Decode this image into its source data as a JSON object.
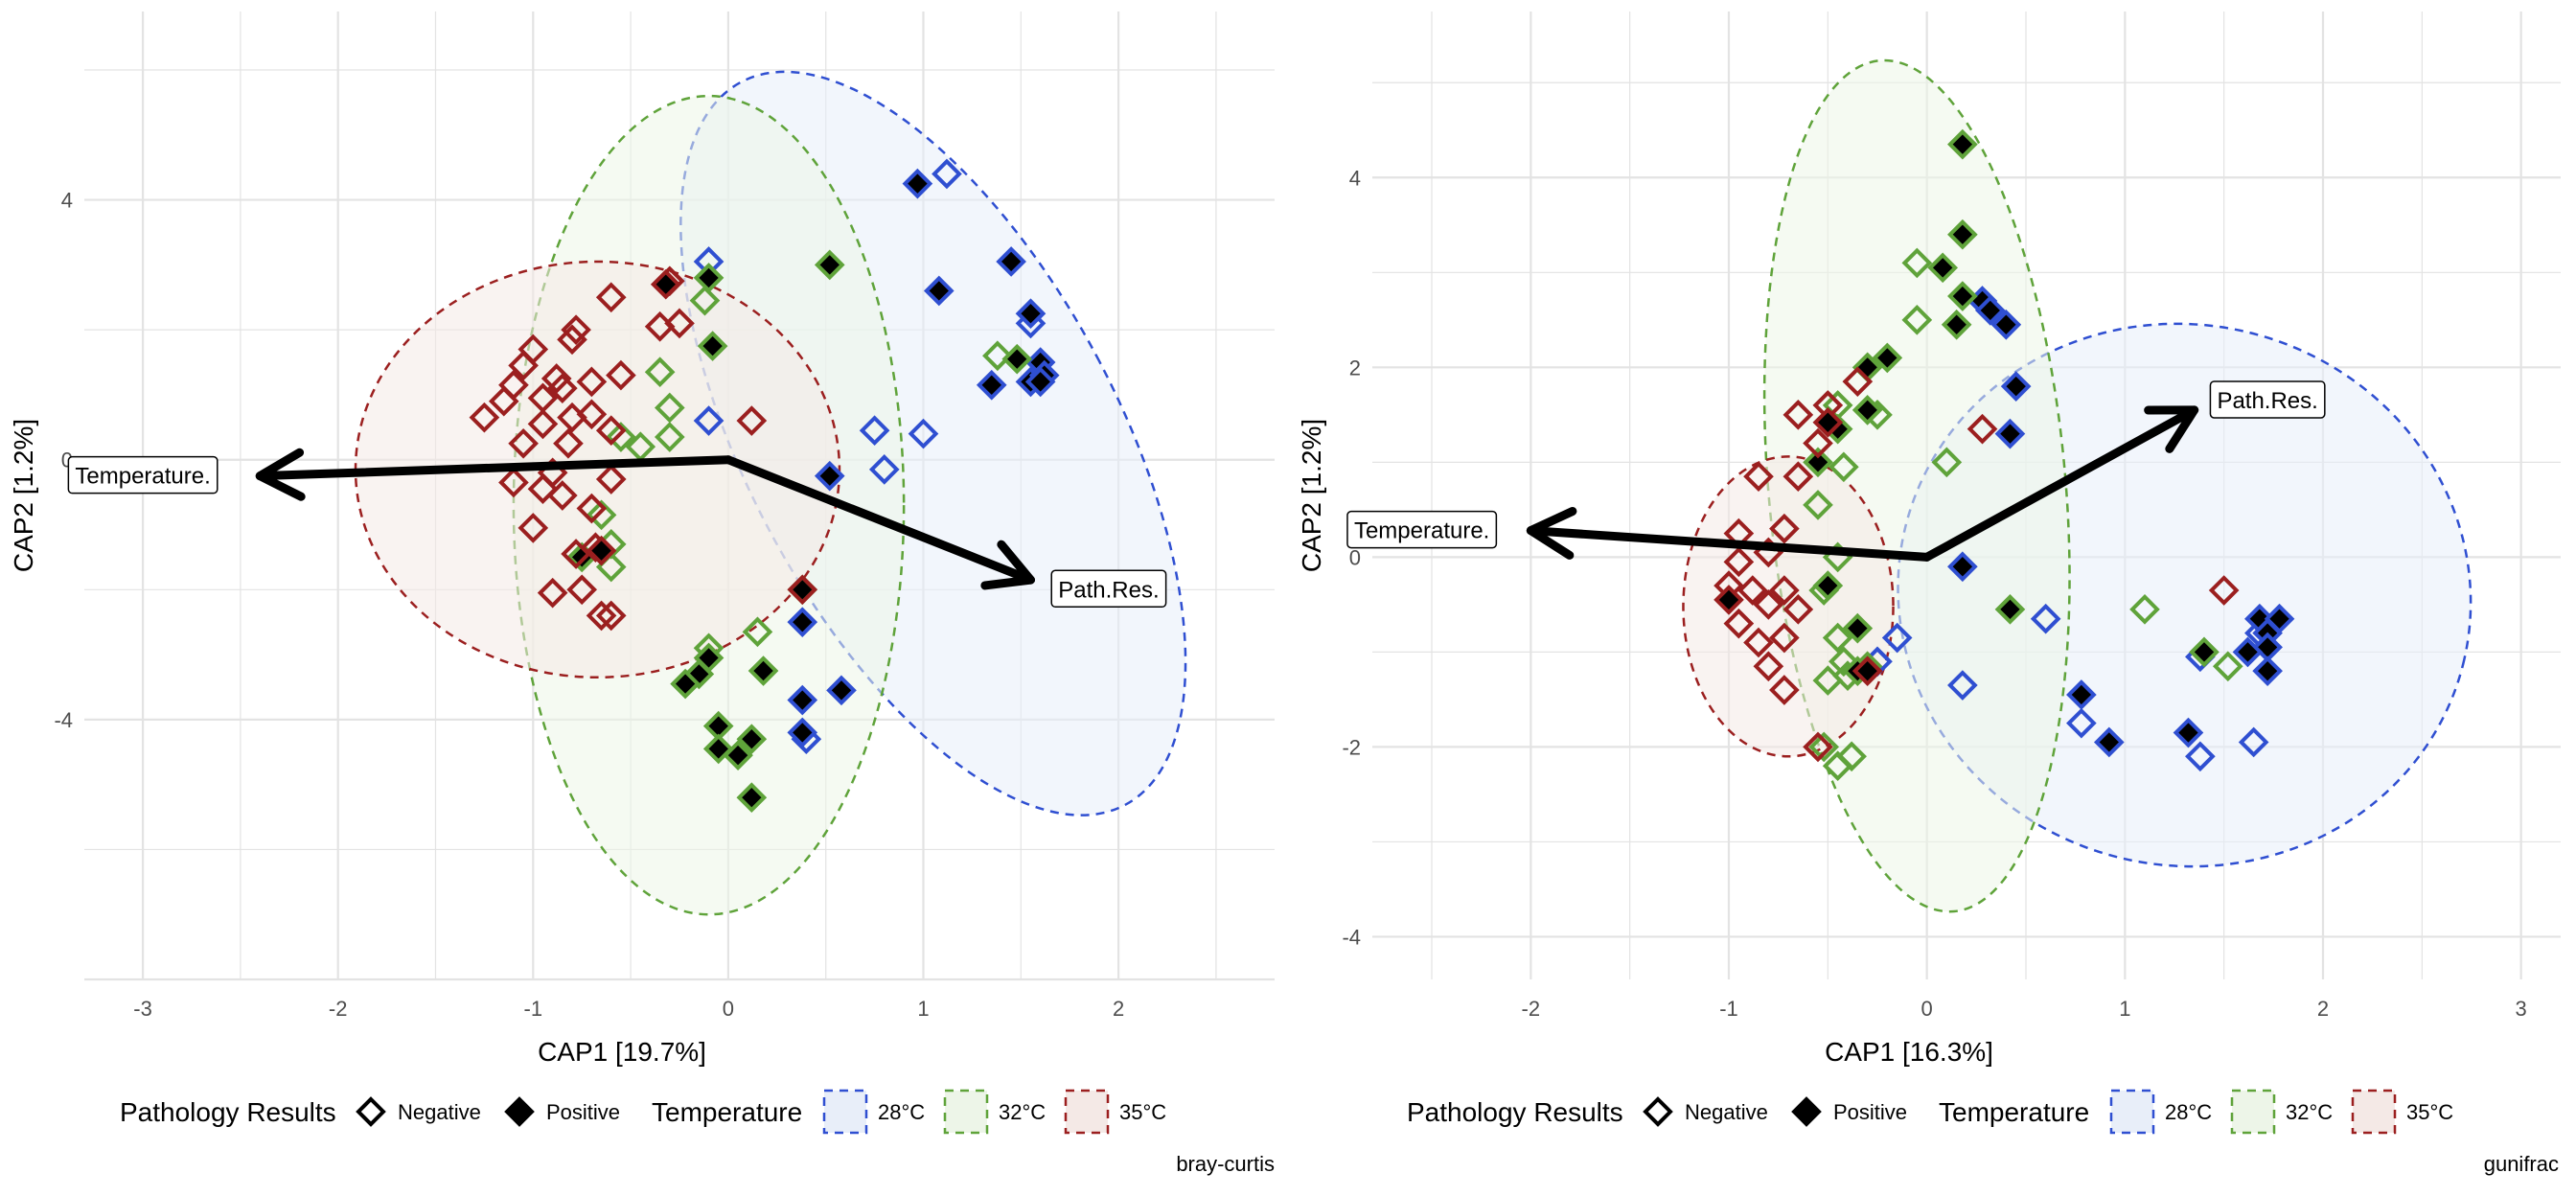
{
  "chart_data": [
    {
      "type": "scatter",
      "caption": "bray-curtis",
      "xlabel": "CAP1 [19.7%]",
      "ylabel": "CAP2 [1.2%]",
      "xlim": [
        -3.3,
        2.8
      ],
      "ylim": [
        -8,
        6.9
      ],
      "xticks": [
        -3,
        -2,
        -1,
        0,
        1,
        2
      ],
      "yticks": [
        -4,
        0,
        4
      ],
      "grid": true,
      "ellipses": [
        {
          "group": "28°C",
          "cx": 1.05,
          "cy": 0.25,
          "rx": 0.95,
          "ry": 6.3,
          "angle": 28
        },
        {
          "group": "32°C",
          "cx": -0.1,
          "cy": -0.7,
          "rx": 1.0,
          "ry": 6.3,
          "angle": 0
        },
        {
          "group": "35°C",
          "cx": -0.67,
          "cy": -0.15,
          "rx": 1.24,
          "ry": 3.2,
          "angle": 0
        }
      ],
      "arrows": [
        {
          "label": "Temperature.",
          "x": -2.4,
          "y": -0.25,
          "label_x": -3.0,
          "label_y": -0.25
        },
        {
          "label": "Path.Res.",
          "x": 1.55,
          "y": -1.85,
          "label_x": 1.95,
          "label_y": -2.0
        }
      ],
      "series": [
        {
          "temperature": "28°C",
          "pathology": "Negative",
          "points": [
            [
              1.12,
              4.4
            ],
            [
              -0.1,
              3.05
            ],
            [
              1.55,
              2.1
            ],
            [
              -0.1,
              0.6
            ],
            [
              0.75,
              0.45
            ],
            [
              1.0,
              0.4
            ],
            [
              0.8,
              -0.15
            ],
            [
              0.4,
              -4.3
            ]
          ]
        },
        {
          "temperature": "28°C",
          "pathology": "Positive",
          "points": [
            [
              0.97,
              4.25
            ],
            [
              1.45,
              3.05
            ],
            [
              1.08,
              2.6
            ],
            [
              1.55,
              2.25
            ],
            [
              1.6,
              1.5
            ],
            [
              1.35,
              1.15
            ],
            [
              1.55,
              1.2
            ],
            [
              1.62,
              1.3
            ],
            [
              1.6,
              1.2
            ],
            [
              0.52,
              -0.25
            ],
            [
              0.38,
              -2.5
            ],
            [
              0.38,
              -3.7
            ],
            [
              0.58,
              -3.55
            ],
            [
              0.38,
              -4.2
            ]
          ]
        },
        {
          "temperature": "32°C",
          "pathology": "Negative",
          "points": [
            [
              -0.12,
              2.45
            ],
            [
              -0.35,
              1.35
            ],
            [
              -0.3,
              0.8
            ],
            [
              -0.55,
              0.35
            ],
            [
              -0.3,
              0.35
            ],
            [
              -0.45,
              0.2
            ],
            [
              -0.65,
              -0.85
            ],
            [
              -0.6,
              -1.3
            ],
            [
              -0.6,
              -1.65
            ],
            [
              -0.1,
              -2.9
            ],
            [
              0.15,
              -2.65
            ],
            [
              1.38,
              1.6
            ]
          ]
        },
        {
          "temperature": "32°C",
          "pathology": "Positive",
          "points": [
            [
              0.52,
              3.0
            ],
            [
              -0.1,
              2.8
            ],
            [
              -0.08,
              1.75
            ],
            [
              -0.75,
              -1.5
            ],
            [
              -0.1,
              -3.05
            ],
            [
              -0.15,
              -3.3
            ],
            [
              0.18,
              -3.25
            ],
            [
              -0.22,
              -3.45
            ],
            [
              -0.05,
              -4.1
            ],
            [
              -0.05,
              -4.45
            ],
            [
              0.05,
              -4.55
            ],
            [
              0.12,
              -4.3
            ],
            [
              0.12,
              -5.2
            ],
            [
              1.48,
              1.55
            ],
            [
              0.38,
              -2.0
            ]
          ]
        },
        {
          "temperature": "35°C",
          "pathology": "Negative",
          "points": [
            [
              -0.6,
              2.5
            ],
            [
              -0.78,
              2.0
            ],
            [
              -0.3,
              2.75
            ],
            [
              -0.8,
              1.85
            ],
            [
              -1.0,
              1.7
            ],
            [
              -1.05,
              1.45
            ],
            [
              -0.88,
              1.25
            ],
            [
              -0.7,
              1.2
            ],
            [
              -0.55,
              1.3
            ],
            [
              -1.1,
              1.15
            ],
            [
              -0.85,
              1.1
            ],
            [
              -0.95,
              0.95
            ],
            [
              -1.15,
              0.9
            ],
            [
              -0.8,
              0.65
            ],
            [
              -0.7,
              0.7
            ],
            [
              -1.25,
              0.65
            ],
            [
              -0.95,
              0.55
            ],
            [
              -0.6,
              0.45
            ],
            [
              0.12,
              0.6
            ],
            [
              -0.82,
              0.25
            ],
            [
              -1.05,
              0.25
            ],
            [
              -0.6,
              -0.3
            ],
            [
              -0.9,
              -0.2
            ],
            [
              -1.1,
              -0.35
            ],
            [
              -0.95,
              -0.45
            ],
            [
              -0.85,
              -0.55
            ],
            [
              -0.7,
              -0.75
            ],
            [
              -1.0,
              -1.05
            ],
            [
              -0.78,
              -1.45
            ],
            [
              -0.68,
              -1.35
            ],
            [
              -0.75,
              -2.0
            ],
            [
              -0.65,
              -2.4
            ],
            [
              -0.6,
              -2.4
            ],
            [
              -0.9,
              -2.05
            ],
            [
              -0.35,
              2.05
            ],
            [
              -0.25,
              2.1
            ],
            [
              0.38,
              -2.0
            ]
          ]
        },
        {
          "temperature": "35°C",
          "pathology": "Positive",
          "points": [
            [
              -0.32,
              2.7
            ],
            [
              -0.65,
              -1.4
            ]
          ]
        }
      ],
      "legend": {
        "position": "bottom",
        "pathology_title": "Pathology Results",
        "pathology_items": [
          "Negative",
          "Positive"
        ],
        "temperature_title": "Temperature",
        "temperature_items": [
          "28°C",
          "32°C",
          "35°C"
        ]
      }
    },
    {
      "type": "scatter",
      "caption": "gunifrac",
      "xlabel": "CAP1 [16.3%]",
      "ylabel": "CAP2 [1.2%]",
      "xlim": [
        -2.8,
        3.2
      ],
      "ylim": [
        -4.45,
        5.75
      ],
      "xticks": [
        -2,
        -1,
        0,
        1,
        2,
        3
      ],
      "yticks": [
        -4,
        -2,
        0,
        2,
        4
      ],
      "grid": true,
      "ellipses": [
        {
          "group": "28°C",
          "cx": 1.3,
          "cy": -0.4,
          "rx": 1.45,
          "ry": 2.85,
          "angle": -13
        },
        {
          "group": "32°C",
          "cx": -0.05,
          "cy": 0.75,
          "rx": 0.75,
          "ry": 4.5,
          "angle": 5
        },
        {
          "group": "35°C",
          "cx": -0.7,
          "cy": -0.52,
          "rx": 0.53,
          "ry": 1.58,
          "angle": 0
        }
      ],
      "arrows": [
        {
          "label": "Temperature.",
          "x": -2.0,
          "y": 0.28,
          "label_x": -2.55,
          "label_y": 0.28
        },
        {
          "label": "Path.Res.",
          "x": 1.35,
          "y": 1.55,
          "label_x": 1.72,
          "label_y": 1.65
        }
      ],
      "series": [
        {
          "temperature": "28°C",
          "pathology": "Negative",
          "points": [
            [
              0.6,
              -0.65
            ],
            [
              -0.15,
              -0.85
            ],
            [
              -0.25,
              -1.1
            ],
            [
              0.18,
              -1.35
            ],
            [
              0.78,
              -1.75
            ],
            [
              1.38,
              -1.05
            ],
            [
              1.38,
              -2.1
            ],
            [
              1.65,
              -1.95
            ],
            [
              1.68,
              -0.8
            ]
          ]
        },
        {
          "temperature": "28°C",
          "pathology": "Positive",
          "points": [
            [
              0.28,
              2.7
            ],
            [
              0.32,
              2.6
            ],
            [
              0.4,
              2.45
            ],
            [
              0.45,
              1.8
            ],
            [
              0.42,
              1.3
            ],
            [
              0.18,
              -0.1
            ],
            [
              0.78,
              -1.45
            ],
            [
              0.92,
              -1.95
            ],
            [
              1.32,
              -1.85
            ],
            [
              1.68,
              -0.65
            ],
            [
              1.72,
              -0.8
            ],
            [
              1.78,
              -0.65
            ],
            [
              1.72,
              -0.95
            ],
            [
              1.62,
              -1.0
            ],
            [
              1.72,
              -1.2
            ]
          ]
        },
        {
          "temperature": "32°C",
          "pathology": "Negative",
          "points": [
            [
              -0.05,
              3.1
            ],
            [
              -0.05,
              2.5
            ],
            [
              -0.45,
              1.6
            ],
            [
              -0.25,
              1.5
            ],
            [
              0.1,
              1.0
            ],
            [
              -0.42,
              0.95
            ],
            [
              -0.55,
              0.55
            ],
            [
              -0.45,
              0.0
            ],
            [
              -0.52,
              -0.35
            ],
            [
              -0.45,
              -0.85
            ],
            [
              -0.42,
              -1.1
            ],
            [
              -0.5,
              -1.3
            ],
            [
              -0.4,
              -1.25
            ],
            [
              1.1,
              -0.55
            ],
            [
              1.52,
              -1.15
            ],
            [
              -0.52,
              -2.0
            ],
            [
              -0.45,
              -2.2
            ],
            [
              -0.38,
              -2.1
            ]
          ]
        },
        {
          "temperature": "32°C",
          "pathology": "Positive",
          "points": [
            [
              0.18,
              4.35
            ],
            [
              0.18,
              3.4
            ],
            [
              0.08,
              3.05
            ],
            [
              0.18,
              2.75
            ],
            [
              0.15,
              2.45
            ],
            [
              -0.2,
              2.1
            ],
            [
              -0.3,
              2.0
            ],
            [
              -0.3,
              1.55
            ],
            [
              -0.45,
              1.35
            ],
            [
              -0.55,
              1.0
            ],
            [
              0.42,
              -0.55
            ],
            [
              -0.5,
              -0.3
            ],
            [
              -0.35,
              -0.75
            ],
            [
              -0.3,
              -1.15
            ],
            [
              -0.35,
              -1.2
            ],
            [
              1.4,
              -1.0
            ]
          ]
        },
        {
          "temperature": "35°C",
          "pathology": "Negative",
          "points": [
            [
              -0.35,
              1.85
            ],
            [
              -0.5,
              1.6
            ],
            [
              -0.65,
              1.5
            ],
            [
              -0.55,
              1.2
            ],
            [
              -0.85,
              0.85
            ],
            [
              -0.65,
              0.85
            ],
            [
              -0.95,
              0.25
            ],
            [
              -0.72,
              0.3
            ],
            [
              -0.8,
              0.05
            ],
            [
              -0.95,
              -0.05
            ],
            [
              -0.88,
              -0.35
            ],
            [
              -0.72,
              -0.35
            ],
            [
              -1.0,
              -0.3
            ],
            [
              -0.8,
              -0.5
            ],
            [
              -0.65,
              -0.55
            ],
            [
              -0.95,
              -0.7
            ],
            [
              -0.85,
              -0.9
            ],
            [
              -0.72,
              -0.85
            ],
            [
              -0.8,
              -1.15
            ],
            [
              -0.72,
              -1.4
            ],
            [
              0.28,
              1.35
            ],
            [
              1.5,
              -0.35
            ],
            [
              -0.55,
              -2.0
            ]
          ]
        },
        {
          "temperature": "35°C",
          "pathology": "Positive",
          "points": [
            [
              -0.5,
              1.42
            ],
            [
              -1.0,
              -0.45
            ],
            [
              -0.3,
              -1.2
            ]
          ]
        }
      ],
      "legend": {
        "position": "bottom",
        "pathology_title": "Pathology Results",
        "pathology_items": [
          "Negative",
          "Positive"
        ],
        "temperature_title": "Temperature",
        "temperature_items": [
          "28°C",
          "32°C",
          "35°C"
        ]
      }
    }
  ],
  "colors": {
    "28°C": "#2f4fd1",
    "32°C": "#5fa33a",
    "35°C": "#9b1f1f",
    "28°C_fill": "#e8eef9",
    "32°C_fill": "#edf5e8",
    "35°C_fill": "#f4e9e6",
    "grid": "#e3e3e3",
    "arrow": "#000000"
  }
}
